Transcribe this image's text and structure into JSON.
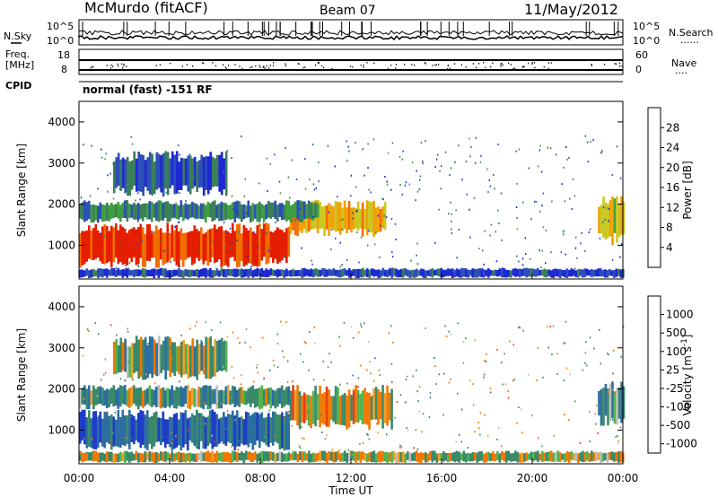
{
  "header": {
    "title": "McMurdo (fitACF)",
    "beam": "Beam 07",
    "date": "11/May/2012"
  },
  "noise_panel": {
    "left_label": "N.Sky",
    "right_label": "N.Search",
    "right_marker": "......",
    "left_ticks": [
      "10^5",
      "10^0"
    ],
    "right_ticks": [
      "10^5",
      "10^0"
    ]
  },
  "freq_panel": {
    "left_label_line1": "Freq.",
    "left_label_line2": "[MHz]",
    "right_label": "Nave",
    "right_marker": "....",
    "left_ticks": [
      "18",
      "8"
    ],
    "right_ticks": [
      "60",
      "0"
    ]
  },
  "cpid_panel": {
    "label": "CPID",
    "value": "normal (fast) -151 RF"
  },
  "colors": {
    "power_scale": [
      "#1e28d2",
      "#2d4fb8",
      "#3a7f5a",
      "#3f9e3f",
      "#c8c81e",
      "#f0a000",
      "#f06e00",
      "#e61e00"
    ],
    "velocity_scale": [
      "#1e3cc8",
      "#2d6ea0",
      "#3a8a6a",
      "#50b450",
      "#bebebe",
      "#f0a028",
      "#f07800",
      "#e63c14",
      "#e6001e"
    ]
  },
  "chart_data": [
    {
      "type": "heatmap",
      "panel": "power",
      "xlabel": "Time UT",
      "ylabel": "Slant Range [km]",
      "xlim": [
        "00:00",
        "24:00"
      ],
      "ylim": [
        180,
        4500
      ],
      "x_ticks": [
        "00:00",
        "04:00",
        "08:00",
        "12:00",
        "16:00",
        "20:00",
        "00:00"
      ],
      "y_ticks": [
        1000,
        2000,
        3000,
        4000
      ],
      "colorbar": {
        "label": "Power [dB]",
        "ticks": [
          "28",
          "24",
          "20",
          "16",
          "12",
          "8",
          "4"
        ],
        "range": [
          0,
          30
        ]
      },
      "regions": [
        {
          "t0": 0.0,
          "t1": 9.3,
          "r0": 450,
          "r1": 1550,
          "level": 28
        },
        {
          "t0": 9.3,
          "t1": 13.5,
          "r0": 1200,
          "r1": 2100,
          "level": 20
        },
        {
          "t0": 0.0,
          "t1": 10.5,
          "r0": 1550,
          "r1": 2100,
          "level": 10
        },
        {
          "t0": 1.5,
          "t1": 6.5,
          "r0": 2200,
          "r1": 3300,
          "level": 6
        },
        {
          "t0": 22.9,
          "t1": 24.0,
          "r0": 1000,
          "r1": 2200,
          "level": 18
        },
        {
          "t0": 0.0,
          "t1": 24.0,
          "r0": 200,
          "r1": 450,
          "level": 4
        }
      ]
    },
    {
      "type": "heatmap",
      "panel": "velocity",
      "xlabel": "Time UT",
      "ylabel": "Slant Range [km]",
      "xlim": [
        "00:00",
        "24:00"
      ],
      "ylim": [
        180,
        4500
      ],
      "x_ticks": [
        "00:00",
        "04:00",
        "08:00",
        "12:00",
        "16:00",
        "20:00",
        "00:00"
      ],
      "y_ticks": [
        1000,
        2000,
        3000,
        4000
      ],
      "colorbar": {
        "label": "Velocity [m s^-1]",
        "ticks": [
          "1000",
          "500",
          "100",
          "25",
          "-25",
          "-100",
          "-500",
          "-1000"
        ],
        "range": [
          -1200,
          1200
        ]
      },
      "regions": [
        {
          "t0": 0.0,
          "t1": 9.3,
          "r0": 500,
          "r1": 1500,
          "velocity": 800
        },
        {
          "t0": 0.0,
          "t1": 9.3,
          "r0": 1500,
          "r1": 2100,
          "velocity": 300
        },
        {
          "t0": 9.3,
          "t1": 13.8,
          "r0": 1000,
          "r1": 2100,
          "velocity": -100
        },
        {
          "t0": 1.5,
          "t1": 6.5,
          "r0": 2200,
          "r1": 3300,
          "velocity": 200
        },
        {
          "t0": 22.9,
          "t1": 24.0,
          "r0": 1100,
          "r1": 2200,
          "velocity": 400
        },
        {
          "t0": 0.0,
          "t1": 24.0,
          "r0": 200,
          "r1": 500,
          "velocity": 0
        }
      ]
    }
  ]
}
